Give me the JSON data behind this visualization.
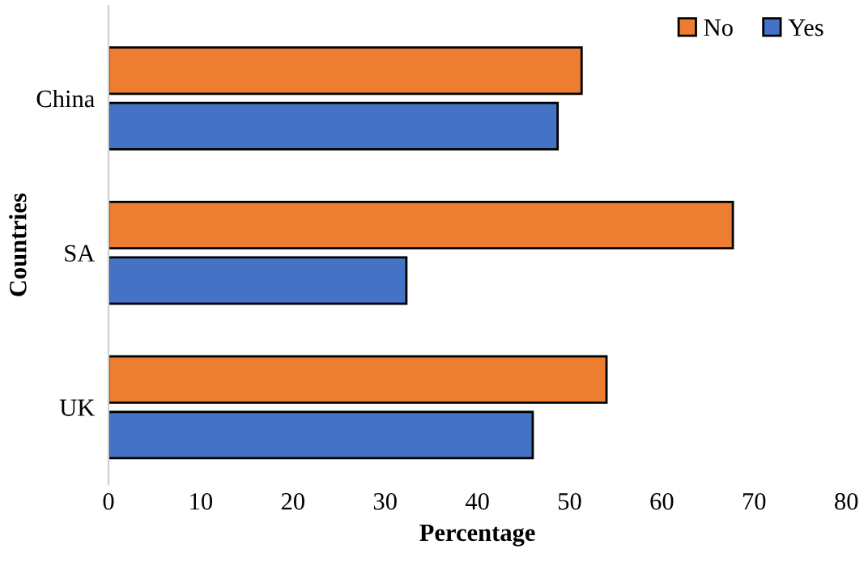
{
  "chart_data": {
    "type": "bar",
    "orientation": "horizontal",
    "xlabel": "Percentage",
    "ylabel": "Countries",
    "categories": [
      "China",
      "SA",
      "UK"
    ],
    "series": [
      {
        "name": "No",
        "color": "#ed7d31",
        "values": [
          51.3,
          67.7,
          54.0
        ]
      },
      {
        "name": "Yes",
        "color": "#4472c4",
        "values": [
          48.7,
          32.3,
          46.0
        ]
      }
    ],
    "xlim": [
      0,
      80
    ],
    "xticks": [
      0,
      10,
      20,
      30,
      40,
      50,
      60,
      70,
      80
    ],
    "grid": false,
    "legend": "top right"
  }
}
